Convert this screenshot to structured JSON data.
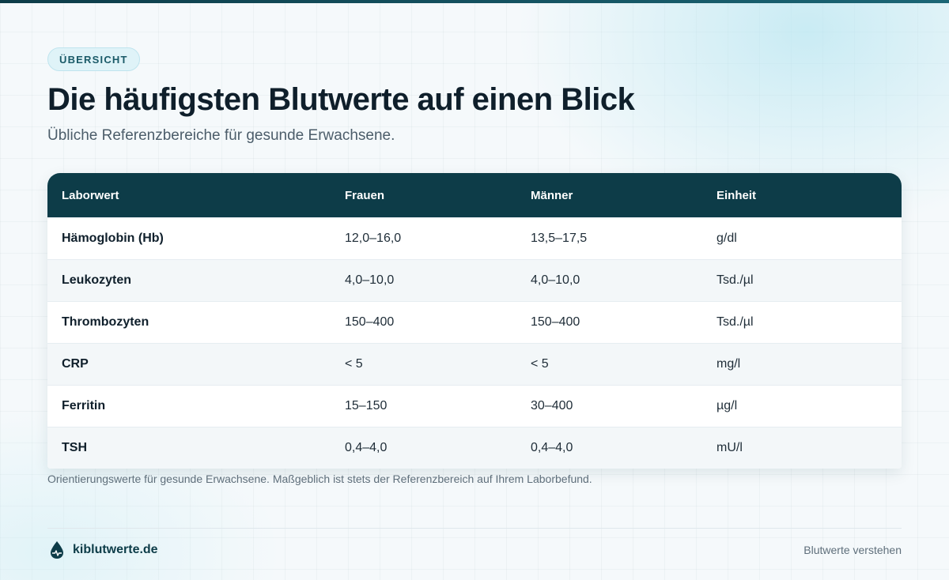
{
  "header": {
    "badge": "ÜBERSICHT",
    "title": "Die häufigsten Blutwerte auf einen Blick",
    "subtitle": "Übliche Referenzbereiche für gesunde Erwachsene."
  },
  "table": {
    "columns": [
      "Laborwert",
      "Frauen",
      "Männer",
      "Einheit"
    ],
    "rows": [
      [
        "Hämoglobin (Hb)",
        "12,0–16,0",
        "13,5–17,5",
        "g/dl"
      ],
      [
        "Leukozyten",
        "4,0–10,0",
        "4,0–10,0",
        "Tsd./µl"
      ],
      [
        "Thrombozyten",
        "150–400",
        "150–400",
        "Tsd./µl"
      ],
      [
        "CRP",
        "< 5",
        "< 5",
        "mg/l"
      ],
      [
        "Ferritin",
        "15–150",
        "30–400",
        "µg/l"
      ],
      [
        "TSH",
        "0,4–4,0",
        "0,4–4,0",
        "mU/l"
      ]
    ]
  },
  "note": "Orientierungswerte für gesunde Erwachsene. Maßgeblich ist stets der Referenzbereich auf Ihrem Laborbefund.",
  "footer": {
    "brand": "kiblutwerte.de",
    "brand_icon": "blood-drop-icon",
    "tagline": "Blutwerte verstehen"
  },
  "colors": {
    "primary": "#0d3c48",
    "badge_bg": "#dff3f8",
    "badge_text": "#1a5a68",
    "row_alt": "#f3f7f9"
  }
}
